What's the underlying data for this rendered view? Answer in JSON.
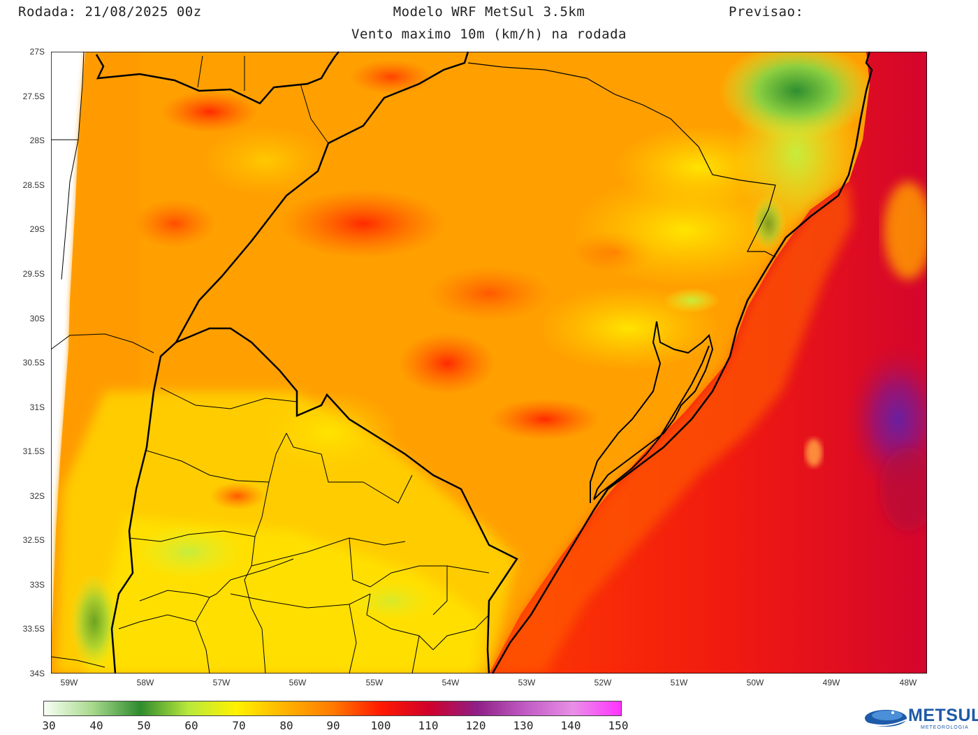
{
  "header": {
    "run": "Rodada: 21/08/2025 00z",
    "model": "Modelo WRF MetSul 3.5km",
    "forecast": "Previsao:",
    "subtitle": "Vento maximo 10m (km/h) na rodada"
  },
  "map": {
    "region": "Rio Grande do Sul / Uruguay / South Atlantic",
    "lat_labels": [
      "27S",
      "27.5S",
      "28S",
      "28.5S",
      "29S",
      "29.5S",
      "30S",
      "30.5S",
      "31S",
      "31.5S",
      "32S",
      "32.5S",
      "33S",
      "33.5S",
      "34S"
    ],
    "lon_labels": [
      "59W",
      "58W",
      "57W",
      "56W",
      "55W",
      "54W",
      "53W",
      "52W",
      "51W",
      "50W",
      "49W",
      "48W"
    ],
    "lat_range": [
      -34,
      -27
    ],
    "lon_range": [
      -59.25,
      -47.75
    ],
    "wind_field_notes": "Mostly 70-95 km/h over land; 100-120 km/h offshore SE; peak ~120 near 31S 48.5W; 50-65 km/h NE highlands"
  },
  "colorbar": {
    "unit": "km/h",
    "labels": [
      "30",
      "40",
      "50",
      "60",
      "70",
      "80",
      "90",
      "100",
      "110",
      "120",
      "130",
      "140",
      "150"
    ],
    "colors": [
      "#f7fff4",
      "#a9d98d",
      "#2e8b2e",
      "#b9e83c",
      "#fff200",
      "#ffb300",
      "#ff7a00",
      "#ff1a00",
      "#d0002a",
      "#8e1f86",
      "#c05bc3",
      "#e88fe6",
      "#ff33ff"
    ]
  },
  "logo": {
    "name": "METSUL",
    "sub": "METEOROLOGIA"
  }
}
